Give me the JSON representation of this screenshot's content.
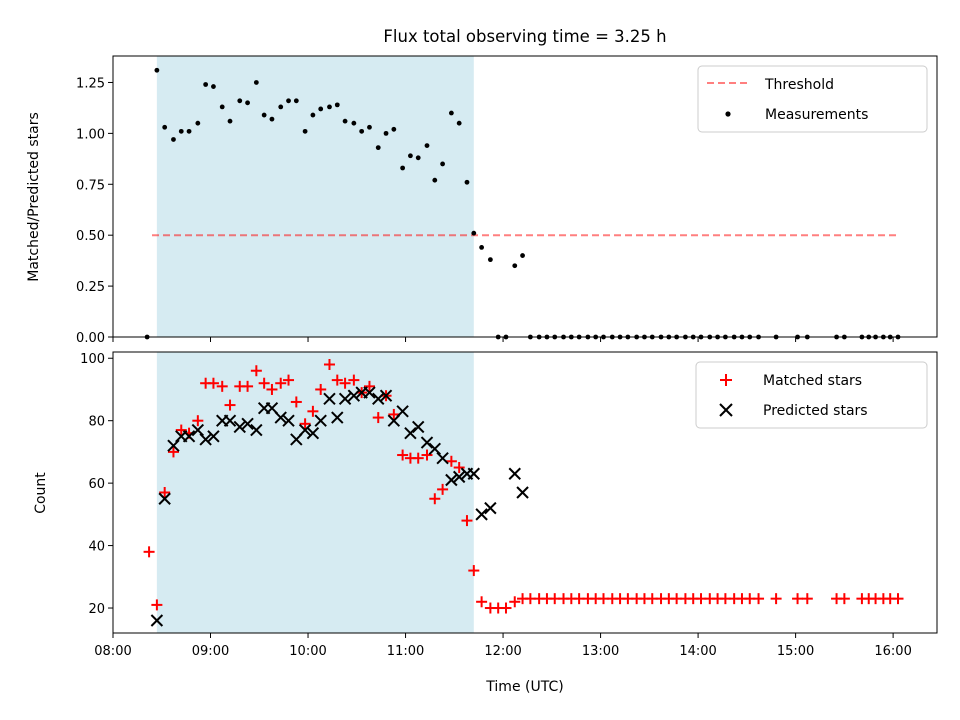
{
  "chart_data": [
    {
      "type": "scatter",
      "title": "Flux total observing time = 3.25 h",
      "xlabel": "",
      "ylabel": "Matched/Predicted stars",
      "ylim": [
        0,
        1.38
      ],
      "yticks": [
        "0.00",
        "0.25",
        "0.50",
        "0.75",
        "1.00",
        "1.25"
      ],
      "legend": [
        "Threshold",
        "Measurements"
      ],
      "threshold": {
        "value": 0.5,
        "x_start": 8.4,
        "x_end": 16.05
      },
      "highlight_span": [
        8.45,
        11.7
      ],
      "series": [
        {
          "name": "Measurements",
          "x": [
            8.35,
            8.45,
            8.53,
            8.62,
            8.7,
            8.78,
            8.87,
            8.95,
            9.03,
            9.12,
            9.2,
            9.3,
            9.38,
            9.47,
            9.55,
            9.63,
            9.72,
            9.8,
            9.88,
            9.97,
            10.05,
            10.13,
            10.22,
            10.3,
            10.38,
            10.47,
            10.55,
            10.63,
            10.72,
            10.8,
            10.88,
            10.97,
            11.05,
            11.13,
            11.22,
            11.3,
            11.38,
            11.47,
            11.55,
            11.63,
            11.7,
            11.78,
            11.87,
            11.95,
            12.03,
            12.12,
            12.2,
            12.28,
            12.37,
            12.45,
            12.53,
            12.62,
            12.7,
            12.78,
            12.87,
            12.95,
            13.03,
            13.12,
            13.2,
            13.28,
            13.37,
            13.45,
            13.53,
            13.62,
            13.7,
            13.78,
            13.87,
            13.95,
            14.03,
            14.12,
            14.2,
            14.28,
            14.37,
            14.45,
            14.53,
            14.62,
            14.8,
            15.02,
            15.12,
            15.42,
            15.5,
            15.68,
            15.75,
            15.82,
            15.9,
            15.97,
            16.05
          ],
          "y": [
            0.0,
            1.31,
            1.03,
            0.97,
            1.01,
            1.01,
            1.05,
            1.24,
            1.23,
            1.13,
            1.06,
            1.16,
            1.15,
            1.25,
            1.09,
            1.07,
            1.13,
            1.16,
            1.16,
            1.01,
            1.09,
            1.12,
            1.13,
            1.14,
            1.06,
            1.05,
            1.01,
            1.03,
            0.93,
            1.0,
            1.02,
            0.83,
            0.89,
            0.88,
            0.94,
            0.77,
            0.85,
            1.1,
            1.05,
            0.76,
            0.51,
            0.44,
            0.38,
            0.0,
            0.0,
            0.35,
            0.4,
            0.0,
            0.0,
            0.0,
            0.0,
            0.0,
            0.0,
            0.0,
            0.0,
            0.0,
            0.0,
            0.0,
            0.0,
            0.0,
            0.0,
            0.0,
            0.0,
            0.0,
            0.0,
            0.0,
            0.0,
            0.0,
            0.0,
            0.0,
            0.0,
            0.0,
            0.0,
            0.0,
            0.0,
            0.0,
            0.0,
            0.0,
            0.0,
            0.0,
            0.0,
            0.0,
            0.0,
            0.0,
            0.0,
            0.0,
            0.0
          ]
        }
      ]
    },
    {
      "type": "scatter",
      "title": "",
      "xlabel": "Time (UTC)",
      "ylabel": "Count",
      "xlim": [
        8.0,
        16.45
      ],
      "ylim": [
        12,
        102
      ],
      "xticks": [
        "08:00",
        "09:00",
        "10:00",
        "11:00",
        "12:00",
        "13:00",
        "14:00",
        "15:00",
        "16:00"
      ],
      "yticks": [
        "20",
        "40",
        "60",
        "80",
        "100"
      ],
      "legend": [
        "Matched stars",
        "Predicted stars"
      ],
      "highlight_span": [
        8.45,
        11.7
      ],
      "series": [
        {
          "name": "Matched stars",
          "x": [
            8.37,
            8.45,
            8.53,
            8.62,
            8.7,
            8.78,
            8.87,
            8.95,
            9.03,
            9.12,
            9.2,
            9.3,
            9.38,
            9.47,
            9.55,
            9.63,
            9.72,
            9.8,
            9.88,
            9.97,
            10.05,
            10.13,
            10.22,
            10.3,
            10.38,
            10.47,
            10.55,
            10.63,
            10.72,
            10.8,
            10.88,
            10.97,
            11.05,
            11.13,
            11.22,
            11.3,
            11.38,
            11.47,
            11.55,
            11.63,
            11.7,
            11.78,
            11.87,
            11.95,
            12.03,
            12.12,
            12.2,
            12.28,
            12.37,
            12.45,
            12.53,
            12.62,
            12.7,
            12.78,
            12.87,
            12.95,
            13.03,
            13.12,
            13.2,
            13.28,
            13.37,
            13.45,
            13.53,
            13.62,
            13.7,
            13.78,
            13.87,
            13.95,
            14.03,
            14.12,
            14.2,
            14.28,
            14.37,
            14.45,
            14.53,
            14.62,
            14.8,
            15.02,
            15.12,
            15.42,
            15.5,
            15.68,
            15.75,
            15.82,
            15.9,
            15.97,
            16.05
          ],
          "y": [
            38,
            21,
            57,
            70,
            77,
            76,
            80,
            92,
            92,
            91,
            85,
            91,
            91,
            96,
            92,
            90,
            92,
            93,
            86,
            79,
            83,
            90,
            98,
            93,
            92,
            93,
            89,
            91,
            81,
            88,
            82,
            69,
            68,
            68,
            69,
            55,
            58,
            67,
            65,
            48,
            32,
            22,
            20,
            20,
            20,
            22,
            23,
            23,
            23,
            23,
            23,
            23,
            23,
            23,
            23,
            23,
            23,
            23,
            23,
            23,
            23,
            23,
            23,
            23,
            23,
            23,
            23,
            23,
            23,
            23,
            23,
            23,
            23,
            23,
            23,
            23,
            23,
            23,
            23,
            23,
            23,
            23,
            23,
            23,
            23,
            23,
            23
          ]
        },
        {
          "name": "Predicted stars",
          "x": [
            8.45,
            8.53,
            8.62,
            8.7,
            8.78,
            8.87,
            8.95,
            9.03,
            9.12,
            9.2,
            9.3,
            9.38,
            9.47,
            9.55,
            9.63,
            9.72,
            9.8,
            9.88,
            9.97,
            10.05,
            10.13,
            10.22,
            10.3,
            10.38,
            10.47,
            10.55,
            10.63,
            10.72,
            10.8,
            10.88,
            10.97,
            11.05,
            11.13,
            11.22,
            11.3,
            11.38,
            11.47,
            11.55,
            11.63,
            11.7,
            11.78,
            11.87,
            12.12,
            12.2
          ],
          "y": [
            16,
            55,
            72,
            75,
            75,
            77,
            74,
            75,
            80,
            80,
            78,
            79,
            77,
            84,
            84,
            81,
            80,
            74,
            77,
            76,
            80,
            87,
            81,
            87,
            88,
            89,
            89,
            87,
            88,
            80,
            83,
            76,
            78,
            73,
            71,
            68,
            61,
            62,
            63,
            63,
            50,
            52,
            63,
            57
          ]
        }
      ]
    }
  ]
}
